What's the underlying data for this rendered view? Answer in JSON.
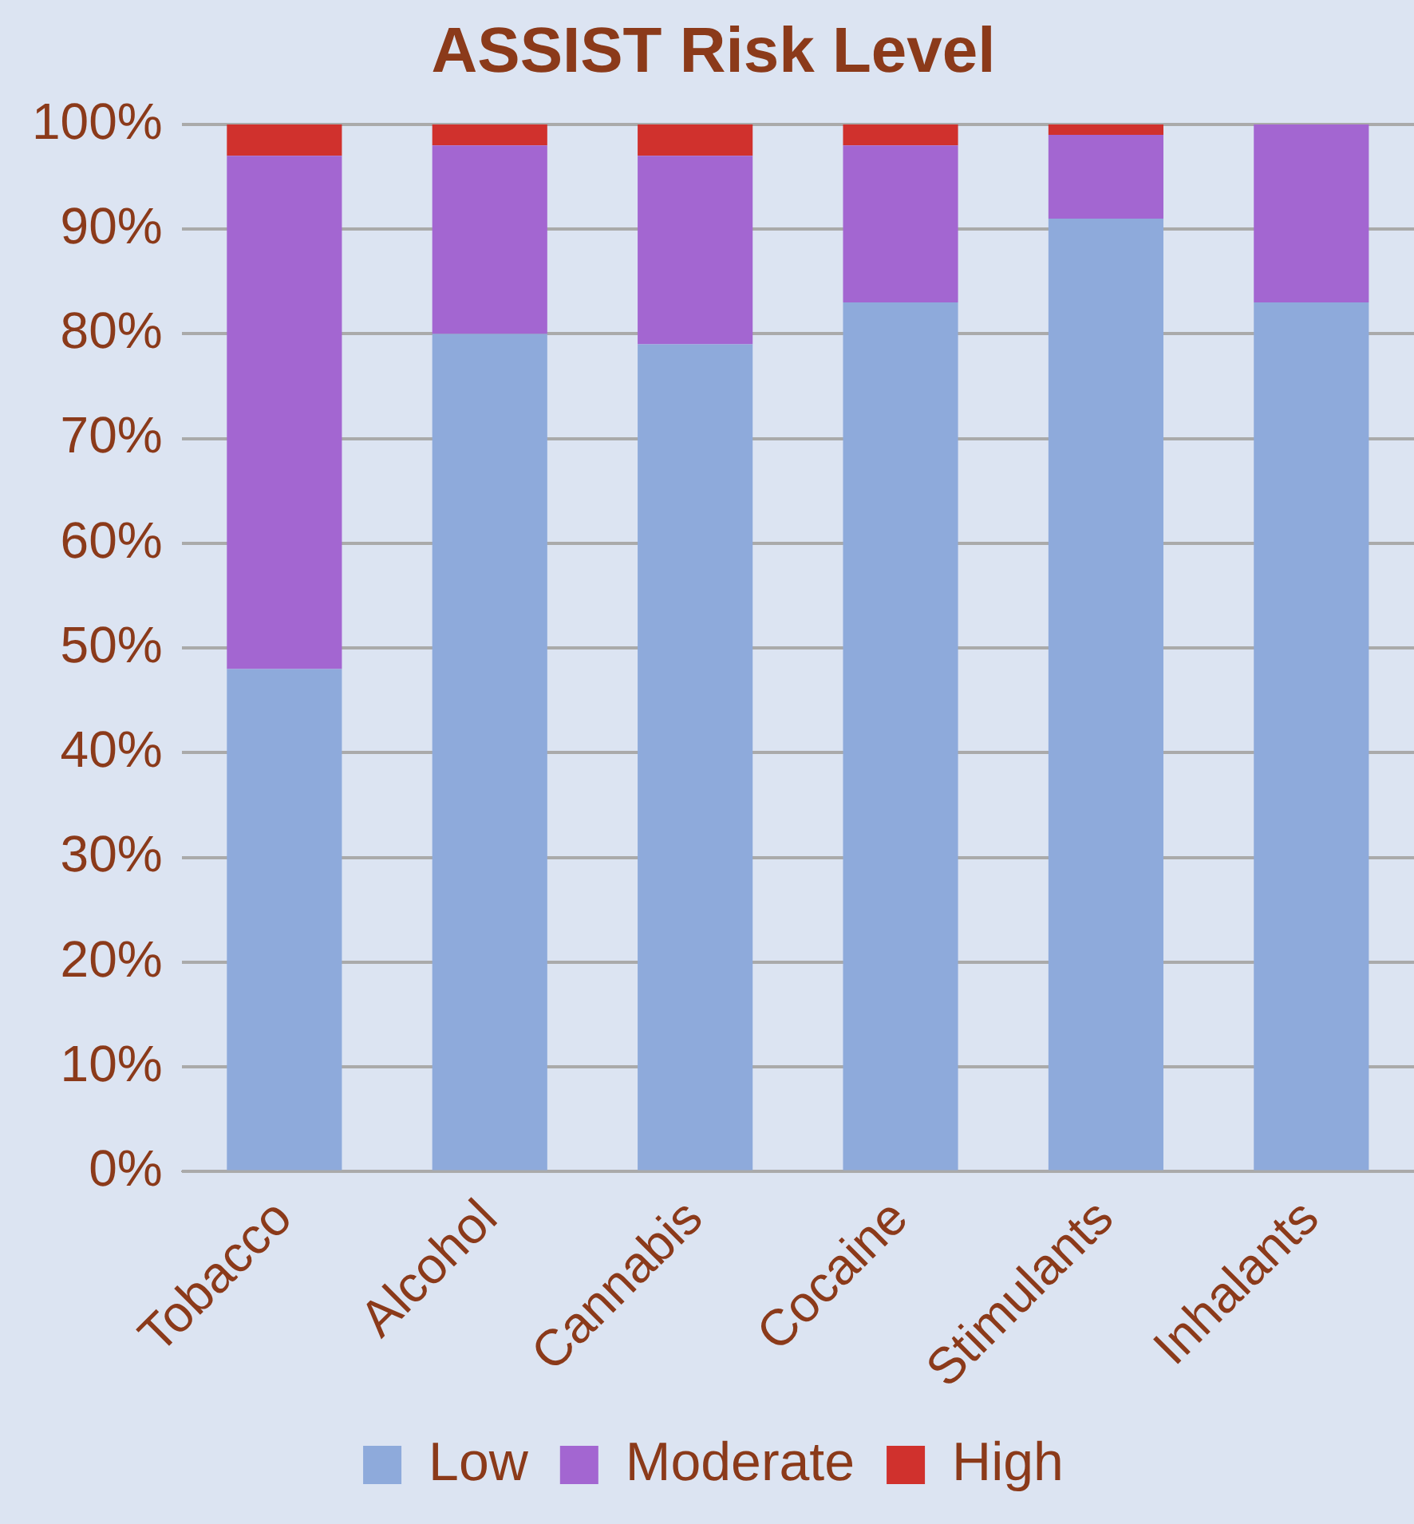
{
  "chart_data": {
    "type": "bar",
    "title": "ASSIST Risk Level",
    "stacked": true,
    "categories": [
      "Tobacco",
      "Alcohol",
      "Cannabis",
      "Cocaine",
      "Stimulants",
      "Inhalants"
    ],
    "series": [
      {
        "name": "Low",
        "color": "#8eaadb",
        "values": [
          48,
          80,
          79,
          83,
          91,
          83
        ]
      },
      {
        "name": "Moderate",
        "color": "#a366d1",
        "values": [
          49,
          18,
          18,
          15,
          8,
          17
        ]
      },
      {
        "name": "High",
        "color": "#d0312d",
        "values": [
          3,
          2,
          3,
          2,
          1,
          0
        ]
      }
    ],
    "ylim": [
      0,
      100
    ],
    "yticks": [
      {
        "value": 0,
        "label": "0%"
      },
      {
        "value": 10,
        "label": "10%"
      },
      {
        "value": 20,
        "label": "20%"
      },
      {
        "value": 30,
        "label": "30%"
      },
      {
        "value": 40,
        "label": "40%"
      },
      {
        "value": 50,
        "label": "50%"
      },
      {
        "value": 60,
        "label": "60%"
      },
      {
        "value": 70,
        "label": "70%"
      },
      {
        "value": 80,
        "label": "80%"
      },
      {
        "value": 90,
        "label": "90%"
      },
      {
        "value": 100,
        "label": "100%"
      }
    ],
    "grid": "y",
    "legend": "bottom"
  }
}
